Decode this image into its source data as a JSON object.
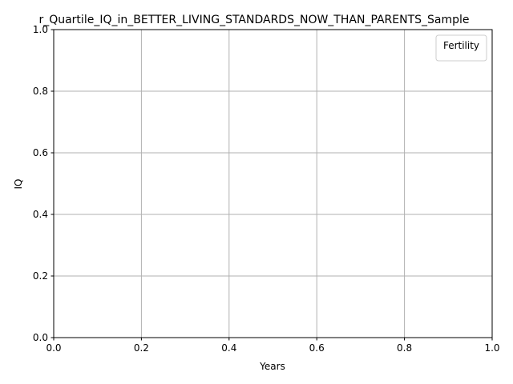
{
  "chart_data": {
    "type": "line",
    "title": "r_Quartile_IQ_in_BETTER_LIVING_STANDARDS_NOW_THAN_PARENTS_Sample",
    "xlabel": "Years",
    "ylabel": "IQ",
    "xlim": [
      0.0,
      1.0
    ],
    "ylim": [
      0.0,
      1.0
    ],
    "x_ticks": [
      "0.0",
      "0.2",
      "0.4",
      "0.6",
      "0.8",
      "1.0"
    ],
    "y_ticks": [
      "0.0",
      "0.2",
      "0.4",
      "0.6",
      "0.8",
      "1.0"
    ],
    "grid": true,
    "legend": {
      "title": "Fertility",
      "placement": "top-right",
      "entries": []
    },
    "series": []
  },
  "colors": {
    "axis": "#000000",
    "grid": "#b0b0b0",
    "legend_border": "#cccccc",
    "background": "#ffffff"
  }
}
